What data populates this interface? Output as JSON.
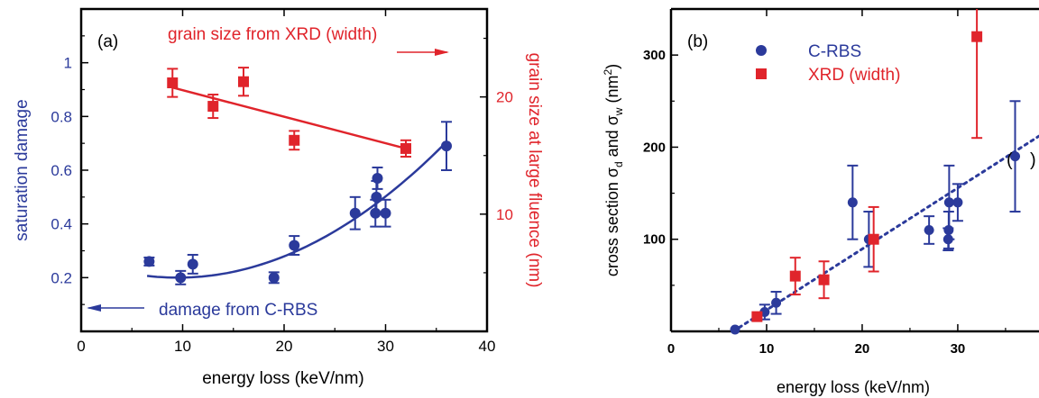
{
  "colors": {
    "blue": "#2b3a9b",
    "red": "#e0242b",
    "axis": "#000000"
  },
  "chart_data": [
    {
      "type": "scatter",
      "panel_label": "(a)",
      "xlabel": "energy loss (keV/nm)",
      "ylabel_left": "saturation damage",
      "ylabel_right": "grain size at large fluence (nm)",
      "xlim": [
        0,
        40
      ],
      "ylim_left": [
        0,
        1.2
      ],
      "ylim_right": [
        0,
        27.5
      ],
      "x_ticks": [
        0,
        10,
        20,
        30,
        40
      ],
      "x_tick_labels": [
        "0",
        "10",
        "20",
        "30",
        "40"
      ],
      "y_left_ticks": [
        0.2,
        0.4,
        0.6,
        0.8,
        1.0
      ],
      "y_left_tick_labels": [
        "0.2",
        "0.4",
        "0.6",
        "0.8",
        "1"
      ],
      "y_right_ticks": [
        10,
        20
      ],
      "y_right_tick_labels": [
        "10",
        "20"
      ],
      "grid": false,
      "annotations": {
        "xrd": "grain size from XRD (width)",
        "crbs": "damage from C-RBS"
      },
      "series": [
        {
          "color": "blue",
          "marker": "circle",
          "axis": "left",
          "points": [
            {
              "x": 6.7,
              "y": 0.26,
              "err": 0.015
            },
            {
              "x": 9.8,
              "y": 0.2,
              "err": 0.025
            },
            {
              "x": 11.0,
              "y": 0.25,
              "err": 0.035
            },
            {
              "x": 19.0,
              "y": 0.2,
              "err": 0.02
            },
            {
              "x": 21.0,
              "y": 0.32,
              "err": 0.035
            },
            {
              "x": 27.0,
              "y": 0.44,
              "err": 0.06
            },
            {
              "x": 29.0,
              "y": 0.44,
              "err": 0.05
            },
            {
              "x": 29.1,
              "y": 0.5,
              "err": 0.06
            },
            {
              "x": 29.2,
              "y": 0.57,
              "err": 0.04
            },
            {
              "x": 30.0,
              "y": 0.44,
              "err": 0.05
            },
            {
              "x": 36.0,
              "y": 0.69,
              "err": 0.09
            }
          ]
        },
        {
          "color": "red",
          "marker": "square",
          "axis": "right",
          "points": [
            {
              "x": 9.0,
              "y": 21.2,
              "err": 1.2
            },
            {
              "x": 13.0,
              "y": 19.2,
              "err": 1.0
            },
            {
              "x": 16.0,
              "y": 21.3,
              "err": 1.2
            },
            {
              "x": 21.0,
              "y": 16.3,
              "err": 0.8
            },
            {
              "x": 32.0,
              "y": 15.6,
              "err": 0.7
            }
          ]
        }
      ],
      "fits": [
        {
          "color": "blue",
          "axis": "left",
          "type": "quadratic",
          "vertex_x": 9.5,
          "vertex_y": 0.2,
          "a": 0.000719,
          "x_range": [
            6.5,
            36.0
          ]
        },
        {
          "color": "red",
          "axis": "right",
          "type": "linear",
          "from": [
            9.0,
            20.8
          ],
          "to": [
            32.0,
            15.6
          ]
        }
      ]
    },
    {
      "type": "scatter",
      "panel_label": "(b)",
      "xlabel": "energy loss (keV/nm)",
      "xlim": [
        0,
        38.5
      ],
      "ylim": [
        0,
        350
      ],
      "x_ticks": [
        0,
        10,
        20,
        30
      ],
      "x_tick_labels": [
        "0",
        "10",
        "20",
        "30"
      ],
      "y_ticks": [
        100,
        200,
        300
      ],
      "y_tick_labels": [
        "100",
        "200",
        "300"
      ],
      "grid": false,
      "legend_position": "top-left",
      "series": [
        {
          "name": "C-RBS",
          "color": "blue",
          "marker": "circle",
          "points": [
            {
              "x": 6.7,
              "y": 2,
              "err": 0
            },
            {
              "x": 9.8,
              "y": 21,
              "err": 8
            },
            {
              "x": 11.0,
              "y": 31,
              "err": 12
            },
            {
              "x": 19.0,
              "y": 140,
              "err": 40
            },
            {
              "x": 20.7,
              "y": 100,
              "err": 30
            },
            {
              "x": 27.0,
              "y": 110,
              "err": 15
            },
            {
              "x": 29.0,
              "y": 100,
              "err": 12
            },
            {
              "x": 29.05,
              "y": 110,
              "err": 20
            },
            {
              "x": 29.1,
              "y": 140,
              "err": 40
            },
            {
              "x": 30.0,
              "y": 140,
              "err": 20
            },
            {
              "x": 36.0,
              "y": 190,
              "err": 60
            }
          ]
        },
        {
          "name": "XRD (width)",
          "color": "red",
          "marker": "square",
          "points": [
            {
              "x": 9.0,
              "y": 16,
              "err": 0
            },
            {
              "x": 13.0,
              "y": 60,
              "err": 20
            },
            {
              "x": 16.0,
              "y": 56,
              "err": 20
            },
            {
              "x": 21.2,
              "y": 100,
              "err": 35
            },
            {
              "x": 32.0,
              "y": 320,
              "err": 110
            }
          ]
        }
      ],
      "fits": [
        {
          "color": "blue",
          "style": "dotted",
          "from": [
            6.5,
            0
          ],
          "to": [
            38.5,
            212
          ]
        }
      ]
    }
  ]
}
